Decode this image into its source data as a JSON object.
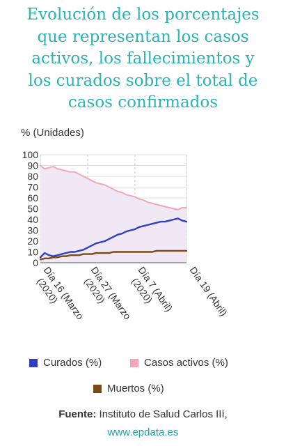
{
  "title_lines": [
    "Evolución de los porcentajes",
    "que representan los casos",
    "activos, los fallecimientos y",
    "los curados sobre el total de",
    "casos confirmados"
  ],
  "source": {
    "label": "Fuente:",
    "text": "Instituto de Salud Carlos III,",
    "url": "www.epdata.es"
  },
  "colors": {
    "curados": "#2f3fc4",
    "activos": "#f2a7b8",
    "muertos": "#7a4a12",
    "title": "#2bb3b6",
    "grid": "#cccccc"
  },
  "chart_data": {
    "type": "line",
    "ylabel": "% (Unidades)",
    "ylim": [
      0,
      100
    ],
    "yticks": [
      0,
      10,
      20,
      30,
      40,
      50,
      60,
      70,
      80,
      90,
      100
    ],
    "xlim": [
      0,
      34
    ],
    "xticks": [
      {
        "x": 0,
        "label_lines": [
          "Día 16 (Marzo",
          "(2020)"
        ]
      },
      {
        "x": 11,
        "label_lines": [
          "Día 27 (Marzo",
          "(2020)"
        ]
      },
      {
        "x": 22,
        "label_lines": [
          "Día 7 (Abril)",
          "(2020)"
        ]
      },
      {
        "x": 34,
        "label_lines": [
          "Día 19 (Abril)"
        ]
      }
    ],
    "grid": true,
    "legend_placement": "bottom",
    "series": [
      {
        "name": "Curados (%)",
        "color": "#2f3fc4",
        "x": [
          0,
          1,
          2,
          3,
          4,
          5,
          6,
          7,
          8,
          9,
          10,
          11,
          12,
          13,
          14,
          15,
          16,
          17,
          18,
          19,
          20,
          21,
          22,
          23,
          24,
          25,
          26,
          27,
          28,
          29,
          30,
          31,
          32,
          33,
          34
        ],
        "y": [
          5,
          9,
          7,
          6,
          7,
          8,
          9,
          10,
          10,
          11,
          12,
          14,
          16,
          18,
          19,
          20,
          22,
          24,
          26,
          27,
          29,
          30,
          31,
          33,
          34,
          35,
          36,
          37,
          38,
          38,
          39,
          40,
          41,
          39,
          38
        ]
      },
      {
        "name": "Casos activos (%)",
        "color": "#f2a7b8",
        "x": [
          0,
          1,
          2,
          3,
          4,
          5,
          6,
          7,
          8,
          9,
          10,
          11,
          12,
          13,
          14,
          15,
          16,
          17,
          18,
          19,
          20,
          21,
          22,
          23,
          24,
          25,
          26,
          27,
          28,
          29,
          30,
          31,
          32,
          33,
          34
        ],
        "y": [
          90,
          87,
          88,
          89,
          87,
          86,
          85,
          84,
          84,
          82,
          80,
          78,
          76,
          74,
          73,
          72,
          70,
          68,
          66,
          65,
          63,
          62,
          61,
          59,
          58,
          56,
          55,
          54,
          53,
          52,
          51,
          50,
          49,
          51,
          51
        ]
      },
      {
        "name": "Muertos (%)",
        "color": "#7a4a12",
        "x": [
          0,
          1,
          2,
          3,
          4,
          5,
          6,
          7,
          8,
          9,
          10,
          11,
          12,
          13,
          14,
          15,
          16,
          17,
          18,
          19,
          20,
          21,
          22,
          23,
          24,
          25,
          26,
          27,
          28,
          29,
          30,
          31,
          32,
          33,
          34
        ],
        "y": [
          3,
          4,
          4,
          5,
          5,
          6,
          6,
          7,
          7,
          7,
          8,
          8,
          8,
          9,
          9,
          9,
          9,
          10,
          10,
          10,
          10,
          10,
          10,
          10,
          10,
          10,
          10,
          11,
          11,
          11,
          11,
          11,
          11,
          11,
          11
        ]
      }
    ]
  }
}
